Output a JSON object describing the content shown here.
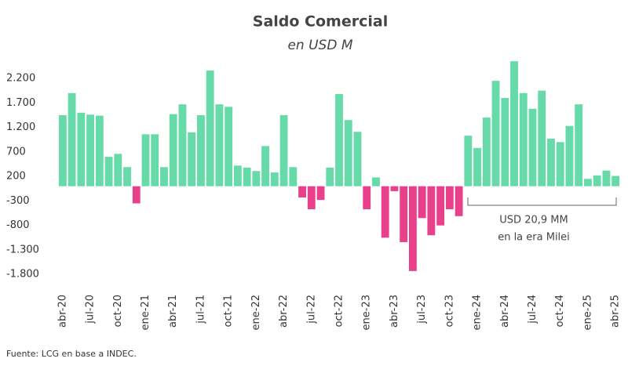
{
  "chart_data": {
    "type": "bar",
    "title": "Saldo Comercial",
    "subtitle": "en USD M",
    "annotation": [
      "USD 20,9 MM",
      "en la era Milei"
    ],
    "source": "Fuente: LCG en base a INDEC.",
    "positive_color": "#66dba9",
    "negative_color": "#e8408a",
    "categories": [
      "abr-20",
      null,
      null,
      "jul-20",
      null,
      null,
      "oct-20",
      null,
      null,
      "ene-21",
      null,
      null,
      "abr-21",
      null,
      null,
      "jul-21",
      null,
      null,
      "oct-21",
      null,
      null,
      "ene-22",
      null,
      null,
      "abr-22",
      null,
      null,
      "jul-22",
      null,
      null,
      "oct-22",
      null,
      null,
      "ene-23",
      null,
      null,
      "abr-23",
      null,
      null,
      "jul-23",
      null,
      null,
      "oct-23",
      null,
      null,
      "ene-24",
      null,
      null,
      "abr-24",
      null,
      null,
      "jul-24",
      null,
      null,
      "oct-24",
      null,
      null,
      "ene-25",
      null,
      null,
      "abr-25"
    ],
    "values": [
      1450,
      1900,
      1500,
      1460,
      1440,
      600,
      660,
      390,
      -350,
      1060,
      1060,
      390,
      1470,
      1670,
      1100,
      1450,
      2360,
      1670,
      1620,
      420,
      380,
      310,
      820,
      280,
      1450,
      390,
      -230,
      -470,
      -280,
      380,
      1880,
      1350,
      1110,
      -470,
      180,
      -1050,
      -100,
      -1140,
      -1730,
      -650,
      -1000,
      -800,
      -470,
      -610,
      1030,
      780,
      1400,
      2150,
      1800,
      2550,
      1900,
      1580,
      1950,
      970,
      900,
      1230,
      1670,
      150,
      220,
      320,
      210
    ],
    "ylim": [
      -1900,
      2600
    ],
    "yticks": [
      {
        "value": 2200,
        "label": "2.200"
      },
      {
        "value": 1700,
        "label": "1.700"
      },
      {
        "value": 1200,
        "label": "1.200"
      },
      700,
      200,
      -300,
      -800,
      {
        "value": -1300,
        "label": "-1.300"
      },
      {
        "value": -1800,
        "label": "-1.800"
      }
    ],
    "grid": false
  }
}
